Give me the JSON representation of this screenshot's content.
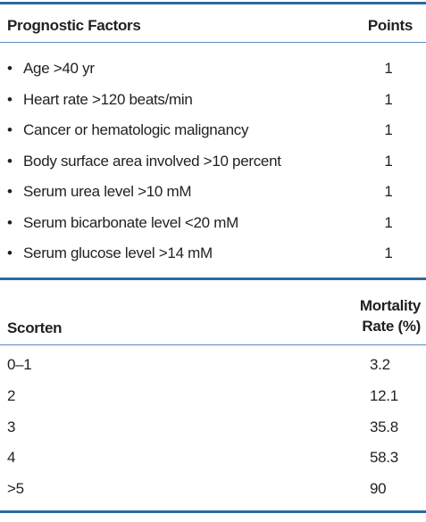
{
  "table1": {
    "header": [
      "Prognostic Factors",
      "Points"
    ],
    "rows": [
      [
        "Age >40 yr",
        1
      ],
      [
        "Heart rate >120 beats/min",
        1
      ],
      [
        "Cancer or hematologic malignancy",
        1
      ],
      [
        "Body surface area involved >10 percent",
        1
      ],
      [
        "Serum urea level >10 mM",
        1
      ],
      [
        "Serum bicarbonate level <20 mM",
        1
      ],
      [
        "Serum glucose level >14 mM",
        1
      ]
    ]
  },
  "table2": {
    "header": [
      "Scorten",
      "Mortality Rate (%)"
    ],
    "rows": [
      [
        "0–1",
        3.2
      ],
      [
        "2",
        12.1
      ],
      [
        "3",
        35.8
      ],
      [
        "4",
        58.3
      ],
      [
        ">5",
        90
      ]
    ]
  }
}
